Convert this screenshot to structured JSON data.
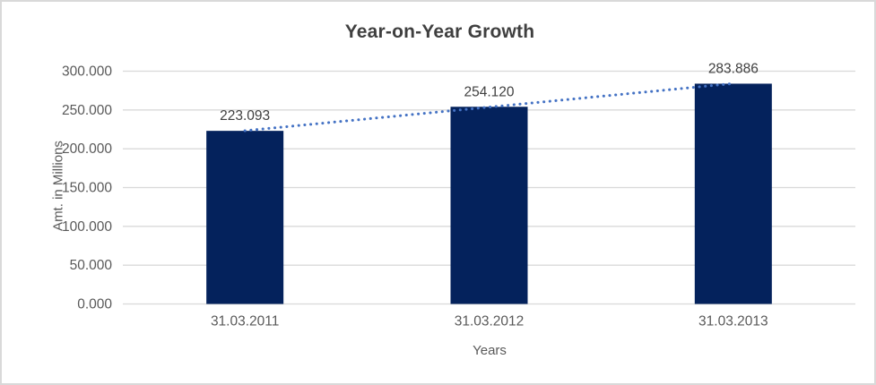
{
  "chart_data": {
    "type": "bar",
    "title": "Year-on-Year Growth",
    "xlabel": "Years",
    "ylabel": "Amt. in Millions",
    "categories": [
      "31.03.2011",
      "31.03.2012",
      "31.03.2013"
    ],
    "values": [
      223.093,
      254.12,
      283.886
    ],
    "data_labels": [
      "223.093",
      "254.120",
      "283.886"
    ],
    "y_ticks": [
      {
        "value": 0,
        "label": "0.000"
      },
      {
        "value": 50,
        "label": "50.000"
      },
      {
        "value": 100,
        "label": "100.000"
      },
      {
        "value": 150,
        "label": "150.000"
      },
      {
        "value": 200,
        "label": "200.000"
      },
      {
        "value": 250,
        "label": "250.000"
      },
      {
        "value": 300,
        "label": "300.000"
      }
    ],
    "ylim": [
      0,
      300
    ],
    "grid": true,
    "legend": "none",
    "trendline": {
      "type": "linear",
      "style": "dotted"
    },
    "colors": {
      "bar": "#04225C",
      "trendline": "#4472C4",
      "gridline": "#D9D9D9",
      "axis_text": "#595959",
      "data_label_text": "#404040",
      "title_text": "#3F3F3F",
      "frame_border": "#D9D9D9",
      "background": "#FFFFFF"
    }
  }
}
